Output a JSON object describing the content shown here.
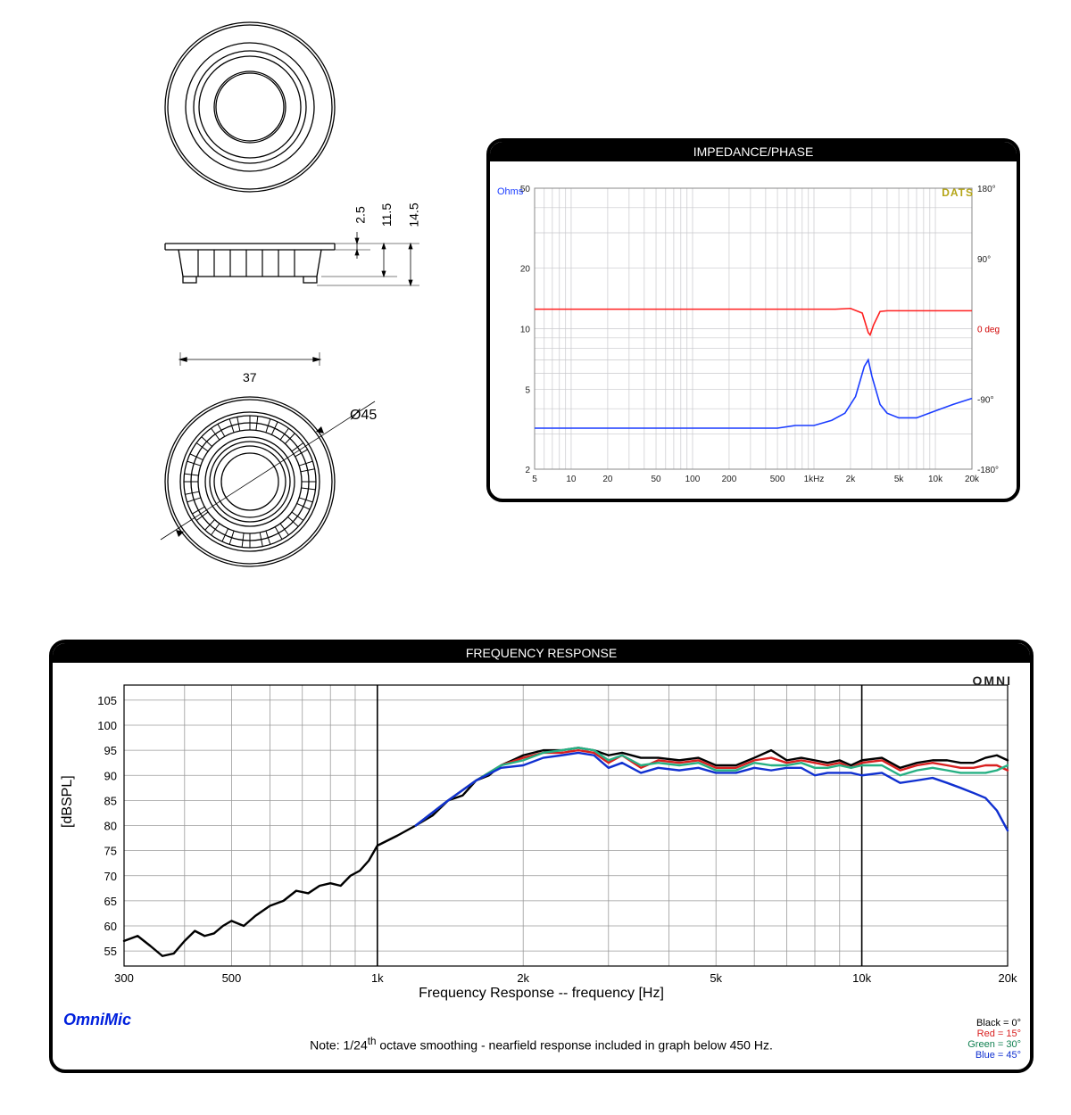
{
  "drawing": {
    "dim_height_total": "14.5",
    "dim_height_mid": "11.5",
    "dim_height_top": "2.5",
    "dim_width": "37",
    "dim_diameter": "Ø45"
  },
  "impedance": {
    "title": "IMPEDANCE/PHASE",
    "ohms_label": "Ohms",
    "dats_label": "DATS",
    "grid_color": "#c8c8cc",
    "axis_color": "#444",
    "bg": "#ffffff",
    "y_left": {
      "min": 2,
      "max": 50,
      "ticks": [
        2,
        5,
        10,
        20,
        50
      ]
    },
    "y_right": {
      "min": -180,
      "max": 180,
      "ticks": [
        -180,
        -90,
        0,
        90,
        180
      ],
      "zero_label": "0 deg",
      "label_color": "#d00000"
    },
    "x": {
      "min": 5,
      "max": 20000,
      "ticks": [
        5,
        10,
        20,
        50,
        100,
        200,
        500,
        "1kHz",
        "2k",
        "5k",
        "10k",
        "20k"
      ],
      "tick_vals": [
        5,
        10,
        20,
        50,
        100,
        200,
        500,
        1000,
        2000,
        5000,
        10000,
        20000
      ]
    },
    "ohms_color": "#1a3cff",
    "phase_color": "#ff2020",
    "ohms_data": [
      [
        5,
        3.2
      ],
      [
        10,
        3.2
      ],
      [
        20,
        3.2
      ],
      [
        50,
        3.2
      ],
      [
        100,
        3.2
      ],
      [
        200,
        3.2
      ],
      [
        300,
        3.2
      ],
      [
        500,
        3.2
      ],
      [
        700,
        3.3
      ],
      [
        1000,
        3.3
      ],
      [
        1400,
        3.5
      ],
      [
        1800,
        3.8
      ],
      [
        2200,
        4.6
      ],
      [
        2600,
        6.5
      ],
      [
        2800,
        7.0
      ],
      [
        3000,
        5.8
      ],
      [
        3500,
        4.2
      ],
      [
        4000,
        3.8
      ],
      [
        5000,
        3.6
      ],
      [
        7000,
        3.6
      ],
      [
        10000,
        3.9
      ],
      [
        14000,
        4.2
      ],
      [
        20000,
        4.5
      ]
    ],
    "phase_data": [
      [
        5,
        25
      ],
      [
        10,
        25
      ],
      [
        20,
        25
      ],
      [
        50,
        25
      ],
      [
        100,
        25
      ],
      [
        200,
        25
      ],
      [
        500,
        25
      ],
      [
        1000,
        25
      ],
      [
        1500,
        25
      ],
      [
        2000,
        26
      ],
      [
        2500,
        20
      ],
      [
        2800,
        -5
      ],
      [
        2900,
        -8
      ],
      [
        3100,
        5
      ],
      [
        3500,
        22
      ],
      [
        4000,
        23
      ],
      [
        6000,
        23
      ],
      [
        10000,
        23
      ],
      [
        20000,
        23
      ]
    ]
  },
  "freq": {
    "title": "FREQUENCY RESPONSE",
    "xlabel": "Frequency Response -- frequency [Hz]",
    "ylabel": "[dBSPL]",
    "grid_color": "#9a9a9a",
    "bg": "#ffffff",
    "heavy_vlines": [
      1000,
      10000
    ],
    "y": {
      "min": 52,
      "max": 108,
      "ticks": [
        55,
        60,
        65,
        70,
        75,
        80,
        85,
        90,
        95,
        100,
        105
      ]
    },
    "x": {
      "min": 300,
      "max": 20000,
      "ticks": [
        300,
        500,
        "1k",
        "2k",
        "5k",
        "10k",
        "20k"
      ],
      "tick_vals": [
        300,
        500,
        1000,
        2000,
        5000,
        10000,
        20000
      ]
    },
    "series": [
      {
        "name": "black",
        "color": "#000000",
        "data": [
          [
            300,
            57
          ],
          [
            320,
            58
          ],
          [
            340,
            56
          ],
          [
            360,
            54
          ],
          [
            380,
            54.5
          ],
          [
            400,
            57
          ],
          [
            420,
            59
          ],
          [
            440,
            58
          ],
          [
            460,
            58.5
          ],
          [
            480,
            60
          ],
          [
            500,
            61
          ],
          [
            530,
            60
          ],
          [
            560,
            62
          ],
          [
            600,
            64
          ],
          [
            640,
            65
          ],
          [
            680,
            67
          ],
          [
            720,
            66.5
          ],
          [
            760,
            68
          ],
          [
            800,
            68.5
          ],
          [
            840,
            68
          ],
          [
            880,
            70
          ],
          [
            920,
            71
          ],
          [
            960,
            73
          ],
          [
            1000,
            76
          ],
          [
            1100,
            78
          ],
          [
            1200,
            80
          ],
          [
            1300,
            82
          ],
          [
            1400,
            85
          ],
          [
            1500,
            86
          ],
          [
            1600,
            89
          ],
          [
            1700,
            90
          ],
          [
            1800,
            92
          ],
          [
            1900,
            93
          ],
          [
            2000,
            94
          ],
          [
            2200,
            95
          ],
          [
            2400,
            95
          ],
          [
            2600,
            95.5
          ],
          [
            2800,
            95
          ],
          [
            3000,
            94
          ],
          [
            3200,
            94.5
          ],
          [
            3500,
            93.5
          ],
          [
            3800,
            93.5
          ],
          [
            4200,
            93
          ],
          [
            4600,
            93.5
          ],
          [
            5000,
            92
          ],
          [
            5500,
            92
          ],
          [
            6000,
            93.5
          ],
          [
            6500,
            95
          ],
          [
            7000,
            93
          ],
          [
            7500,
            93.5
          ],
          [
            8000,
            93
          ],
          [
            8500,
            92.5
          ],
          [
            9000,
            93
          ],
          [
            9500,
            92
          ],
          [
            10000,
            93
          ],
          [
            11000,
            93.5
          ],
          [
            12000,
            91.5
          ],
          [
            13000,
            92.5
          ],
          [
            14000,
            93
          ],
          [
            15000,
            93
          ],
          [
            16000,
            92.5
          ],
          [
            17000,
            92.5
          ],
          [
            18000,
            93.5
          ],
          [
            19000,
            94
          ],
          [
            20000,
            93
          ]
        ]
      },
      {
        "name": "red",
        "color": "#d92020",
        "data": [
          [
            1200,
            80
          ],
          [
            1400,
            85
          ],
          [
            1600,
            89
          ],
          [
            1800,
            92
          ],
          [
            2000,
            93.5
          ],
          [
            2200,
            94.5
          ],
          [
            2400,
            94.5
          ],
          [
            2600,
            95
          ],
          [
            2800,
            94.5
          ],
          [
            3000,
            92.5
          ],
          [
            3200,
            94
          ],
          [
            3500,
            91.5
          ],
          [
            3800,
            93
          ],
          [
            4200,
            92.5
          ],
          [
            4600,
            93
          ],
          [
            5000,
            91.5
          ],
          [
            5500,
            91.5
          ],
          [
            6000,
            93
          ],
          [
            6500,
            93.5
          ],
          [
            7000,
            92.5
          ],
          [
            7500,
            93
          ],
          [
            8000,
            92.5
          ],
          [
            8500,
            92
          ],
          [
            9000,
            92.5
          ],
          [
            9500,
            91.5
          ],
          [
            10000,
            92.5
          ],
          [
            11000,
            93
          ],
          [
            12000,
            91
          ],
          [
            13000,
            92
          ],
          [
            14000,
            92.5
          ],
          [
            15000,
            92
          ],
          [
            16000,
            91.5
          ],
          [
            17000,
            91.5
          ],
          [
            18000,
            92
          ],
          [
            19000,
            92
          ],
          [
            20000,
            91
          ]
        ]
      },
      {
        "name": "green",
        "color": "#26b083",
        "data": [
          [
            1200,
            80
          ],
          [
            1400,
            85
          ],
          [
            1600,
            89
          ],
          [
            1800,
            92
          ],
          [
            2000,
            93
          ],
          [
            2200,
            94.5
          ],
          [
            2400,
            95
          ],
          [
            2600,
            95.5
          ],
          [
            2800,
            95
          ],
          [
            3000,
            93
          ],
          [
            3200,
            94
          ],
          [
            3500,
            92
          ],
          [
            3800,
            92.5
          ],
          [
            4200,
            92
          ],
          [
            4600,
            92.5
          ],
          [
            5000,
            91
          ],
          [
            5500,
            91
          ],
          [
            6000,
            92.5
          ],
          [
            6500,
            92
          ],
          [
            7000,
            92
          ],
          [
            7500,
            92.5
          ],
          [
            8000,
            91.5
          ],
          [
            8500,
            91.5
          ],
          [
            9000,
            92
          ],
          [
            9500,
            91.5
          ],
          [
            10000,
            92
          ],
          [
            11000,
            92
          ],
          [
            12000,
            90
          ],
          [
            13000,
            91
          ],
          [
            14000,
            91.5
          ],
          [
            15000,
            91
          ],
          [
            16000,
            90.5
          ],
          [
            17000,
            90.5
          ],
          [
            18000,
            90.5
          ],
          [
            19000,
            91
          ],
          [
            20000,
            92
          ]
        ]
      },
      {
        "name": "blue",
        "color": "#1030d0",
        "data": [
          [
            1200,
            80
          ],
          [
            1400,
            85
          ],
          [
            1600,
            89
          ],
          [
            1800,
            91.5
          ],
          [
            2000,
            92
          ],
          [
            2200,
            93.5
          ],
          [
            2400,
            94
          ],
          [
            2600,
            94.5
          ],
          [
            2800,
            94
          ],
          [
            3000,
            91.5
          ],
          [
            3200,
            92.5
          ],
          [
            3500,
            90.5
          ],
          [
            3800,
            91.5
          ],
          [
            4200,
            91
          ],
          [
            4600,
            91.5
          ],
          [
            5000,
            90.5
          ],
          [
            5500,
            90.5
          ],
          [
            6000,
            91.5
          ],
          [
            6500,
            91
          ],
          [
            7000,
            91.5
          ],
          [
            7500,
            91.5
          ],
          [
            8000,
            90
          ],
          [
            8500,
            90.5
          ],
          [
            9000,
            90.5
          ],
          [
            9500,
            90.5
          ],
          [
            10000,
            90
          ],
          [
            11000,
            90.5
          ],
          [
            12000,
            88.5
          ],
          [
            13000,
            89
          ],
          [
            14000,
            89.5
          ],
          [
            15000,
            88.5
          ],
          [
            16000,
            87.5
          ],
          [
            17000,
            86.5
          ],
          [
            18000,
            85.5
          ],
          [
            19000,
            83
          ],
          [
            20000,
            79
          ]
        ]
      }
    ],
    "omnimic": "OmniMic",
    "note_pre": "Note:  1/24",
    "note_sup": "th",
    "note_post": " octave smoothing - nearfield response included in graph below 450 Hz.",
    "legend": [
      {
        "label": "Black = 0°",
        "color": "#000000"
      },
      {
        "label": "Red = 15°",
        "color": "#d92020"
      },
      {
        "label": "Green = 30°",
        "color": "#108050"
      },
      {
        "label": "Blue = 45°",
        "color": "#1030d0"
      }
    ],
    "brand_label": "OMNI"
  }
}
